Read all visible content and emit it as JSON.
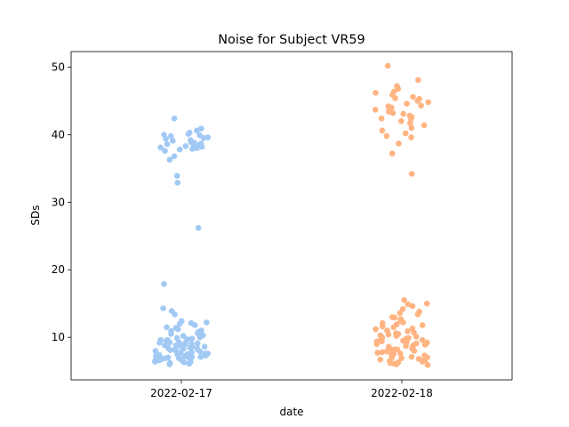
{
  "chart_data": {
    "type": "scatter",
    "title": "Noise for Subject VR59",
    "xlabel": "date",
    "ylabel": "SDs",
    "categories": [
      "2022-02-17",
      "2022-02-18"
    ],
    "ylim": [
      3.7,
      52.3
    ],
    "yticks": [
      10,
      20,
      30,
      40,
      50
    ],
    "grid": false,
    "legend": "none",
    "colors": [
      "#a1c9f4",
      "#ffb482"
    ],
    "series": [
      {
        "category": "2022-02-17",
        "color": "#a1c9f4",
        "values": [
          40.3,
          39.8,
          40.1,
          39.6,
          38.9,
          39.2,
          40.0,
          38.2,
          37.9,
          38.5,
          38.8,
          39.1,
          38.0,
          37.6,
          38.3,
          38.6,
          39.4,
          40.6,
          40.9,
          39.9,
          38.1,
          37.8,
          38.4,
          36.8,
          36.3,
          42.4,
          39.5,
          38.7,
          33.9,
          32.9,
          26.2,
          17.9,
          14.3,
          13.9,
          13.4,
          12.4,
          12.2,
          12.0,
          11.8,
          11.5,
          11.2,
          11.0,
          10.8,
          10.5,
          10.2,
          10.0,
          9.8,
          9.6,
          9.4,
          9.2,
          9.0,
          8.8,
          8.6,
          8.4,
          8.2,
          8.0,
          7.8,
          7.6,
          7.4,
          7.2,
          7.0,
          6.8,
          6.6,
          6.4,
          6.2,
          6.0,
          9.9,
          9.5,
          9.1,
          8.7,
          8.3,
          7.9,
          7.5,
          7.1,
          6.7,
          6.3,
          9.3,
          8.9,
          8.5,
          8.1,
          7.7,
          7.3,
          6.9,
          6.5,
          10.3,
          9.7,
          8.0,
          7.0,
          6.1,
          11.4,
          10.6,
          12.1,
          9.2,
          8.4,
          7.6,
          6.8,
          8.8,
          7.2,
          6.4,
          10.1,
          9.0,
          7.8,
          6.6,
          8.6,
          7.4,
          9.6,
          6.9,
          8.2,
          10.9,
          7.1
        ]
      },
      {
        "category": "2022-02-18",
        "color": "#ffb482",
        "values": [
          50.2,
          48.1,
          47.2,
          46.8,
          46.2,
          45.9,
          45.6,
          45.3,
          45.0,
          44.8,
          44.6,
          44.3,
          44.0,
          43.7,
          43.4,
          43.1,
          42.8,
          42.6,
          42.3,
          42.0,
          41.7,
          41.4,
          41.0,
          40.6,
          40.2,
          39.8,
          39.6,
          38.7,
          37.2,
          34.2,
          46.4,
          45.4,
          44.2,
          43.2,
          42.4,
          15.5,
          15.0,
          14.6,
          14.2,
          13.8,
          13.4,
          13.0,
          12.7,
          12.4,
          12.1,
          11.8,
          11.5,
          11.2,
          10.9,
          10.6,
          10.3,
          10.0,
          9.7,
          9.4,
          9.1,
          8.8,
          8.5,
          8.2,
          7.9,
          7.6,
          7.3,
          7.0,
          6.7,
          6.4,
          6.1,
          5.9,
          11.0,
          10.4,
          9.8,
          9.2,
          8.6,
          8.0,
          7.4,
          6.8,
          6.2,
          12.2,
          10.7,
          9.5,
          8.3,
          7.1,
          6.5,
          11.6,
          10.1,
          9.0,
          7.8,
          6.9,
          13.6,
          12.9,
          11.3,
          9.9,
          8.7,
          7.5,
          6.3,
          10.5,
          9.3,
          8.1,
          7.2,
          6.6,
          14.9,
          11.9,
          9.6,
          8.4,
          7.7,
          6.0,
          10.2,
          8.9,
          7.0,
          9.4,
          8.2
        ]
      }
    ]
  }
}
